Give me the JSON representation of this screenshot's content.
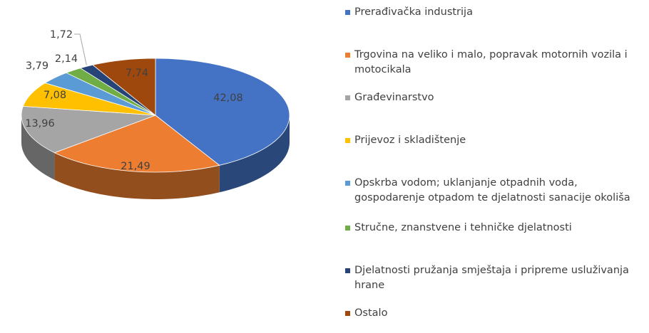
{
  "chart_data": {
    "type": "pie",
    "style": "3d",
    "title": "",
    "categories": [
      "Prerađivačka industrija",
      "Trgovina na veliko i malo, popravak motornih vozila i motocikala",
      "Građevinarstvo",
      "Prijevoz i skladištenje",
      "Opskrba vodom; uklanjanje otpadnih voda, gospodarenje otpadom te djelatnosti sanacije okoliša",
      "Stručne, znanstvene i tehničke djelatnosti",
      "Djelatnosti pružanja smještaja i pripreme usluživanja hrane",
      "Ostalo"
    ],
    "values": [
      42.08,
      21.49,
      13.96,
      7.08,
      3.79,
      2.14,
      1.72,
      7.74
    ],
    "value_labels": [
      "42,08",
      "21,49",
      "13,96",
      "7,08",
      "3,79",
      "2,14",
      "1,72",
      "7,74"
    ],
    "colors": [
      "#4472C4",
      "#ED7D31",
      "#A5A5A5",
      "#FFC000",
      "#5B9BD5",
      "#70AD47",
      "#264478",
      "#9E480E"
    ],
    "legend_position": "right"
  }
}
